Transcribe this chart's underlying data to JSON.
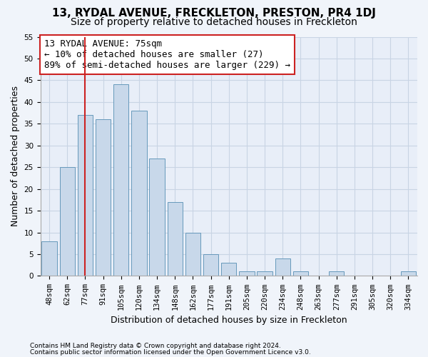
{
  "title": "13, RYDAL AVENUE, FRECKLETON, PRESTON, PR4 1DJ",
  "subtitle": "Size of property relative to detached houses in Freckleton",
  "xlabel": "Distribution of detached houses by size in Freckleton",
  "ylabel": "Number of detached properties",
  "categories": [
    "48sqm",
    "62sqm",
    "77sqm",
    "91sqm",
    "105sqm",
    "120sqm",
    "134sqm",
    "148sqm",
    "162sqm",
    "177sqm",
    "191sqm",
    "205sqm",
    "220sqm",
    "234sqm",
    "248sqm",
    "263sqm",
    "277sqm",
    "291sqm",
    "305sqm",
    "320sqm",
    "334sqm"
  ],
  "values": [
    8,
    25,
    37,
    36,
    44,
    38,
    27,
    17,
    10,
    5,
    3,
    1,
    1,
    4,
    1,
    0,
    1,
    0,
    0,
    0,
    1
  ],
  "bar_color": "#c8d8ea",
  "bar_edge_color": "#6699bb",
  "grid_color": "#c8d4e4",
  "background_color": "#e8eef8",
  "vline_x": 2,
  "vline_color": "#cc2222",
  "annotation_text": "13 RYDAL AVENUE: 75sqm\n← 10% of detached houses are smaller (27)\n89% of semi-detached houses are larger (229) →",
  "annotation_box_color": "#ffffff",
  "annotation_box_edge": "#cc2222",
  "ylim": [
    0,
    55
  ],
  "yticks": [
    0,
    5,
    10,
    15,
    20,
    25,
    30,
    35,
    40,
    45,
    50,
    55
  ],
  "footer1": "Contains HM Land Registry data © Crown copyright and database right 2024.",
  "footer2": "Contains public sector information licensed under the Open Government Licence v3.0.",
  "title_fontsize": 11,
  "subtitle_fontsize": 10,
  "tick_fontsize": 7.5,
  "ylabel_fontsize": 9,
  "xlabel_fontsize": 9,
  "annotation_fontsize": 9,
  "footer_fontsize": 6.5,
  "fig_bg": "#f0f4fa"
}
